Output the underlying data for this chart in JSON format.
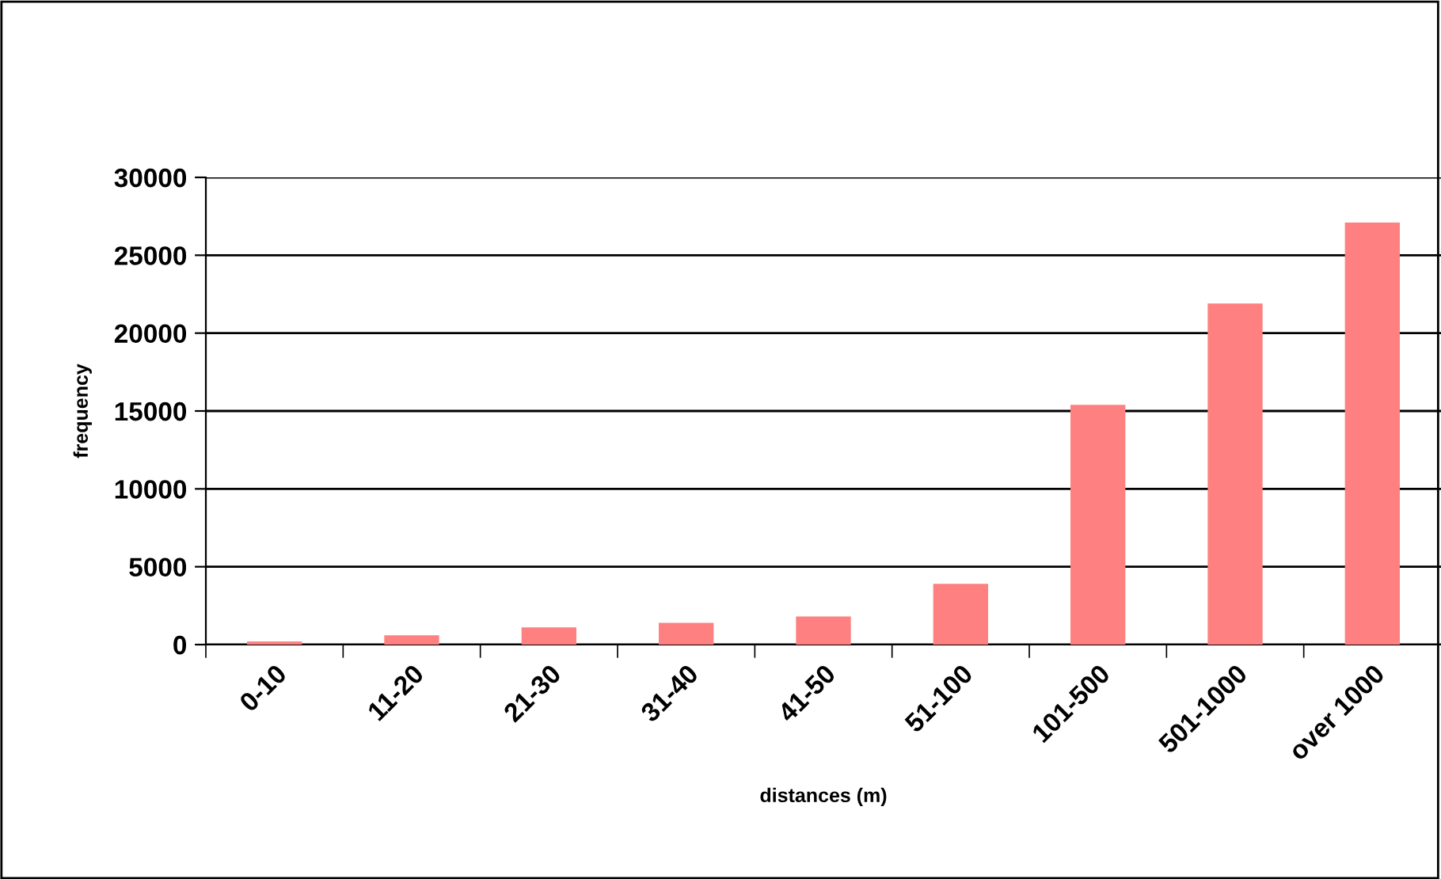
{
  "chart_data": {
    "type": "bar",
    "xlabel": "distances (m)",
    "ylabel": "frequency",
    "categories": [
      "0-10",
      "11-20",
      "21-30",
      "31-40",
      "41-50",
      "51-100",
      "101-500",
      "501-1000",
      "over 1000"
    ],
    "series": [
      {
        "color": "#ff8080",
        "values": [
          200,
          600,
          1100,
          1400,
          1800,
          3900,
          15400,
          21900,
          27100
        ]
      }
    ],
    "ylim": [
      0,
      30000
    ],
    "yticks": [
      0,
      5000,
      10000,
      15000,
      20000,
      25000,
      30000
    ],
    "grid": "y",
    "legend": false
  }
}
